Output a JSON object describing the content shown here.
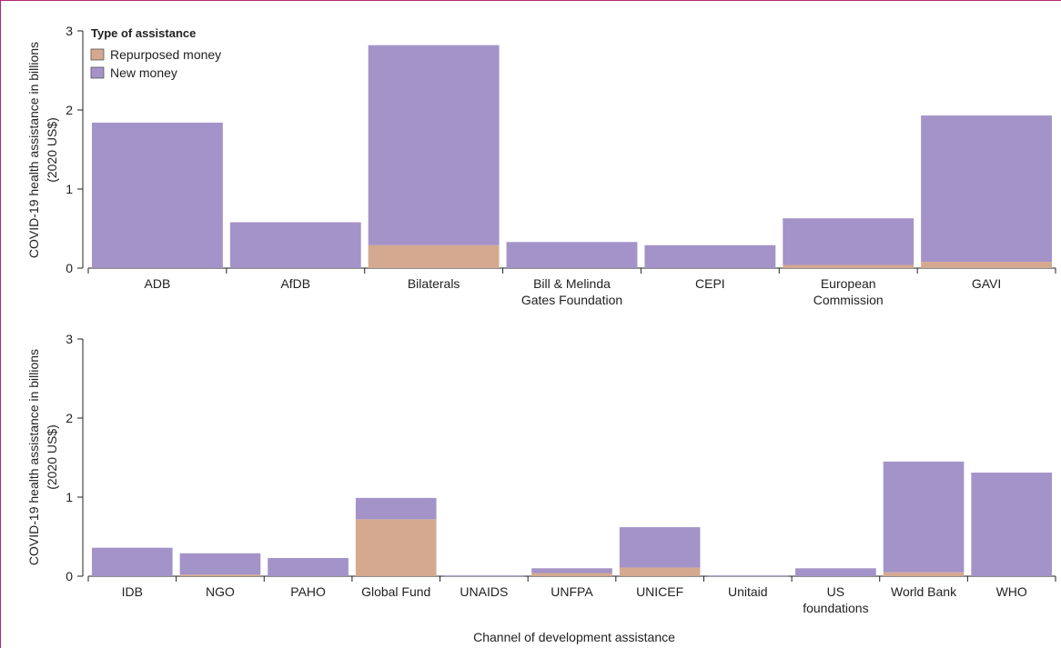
{
  "legend": {
    "title": "Type of assistance",
    "items": [
      {
        "label": "Repurposed money",
        "color": "#d4a990"
      },
      {
        "label": "New money",
        "color": "#a493c8"
      }
    ]
  },
  "xlabel": "Channel of development assistance",
  "chart_data": [
    {
      "type": "bar",
      "stacked": true,
      "ylabel": [
        "COVID-19 health assistance in billions",
        "(2020 US$)"
      ],
      "ylim": [
        0,
        3
      ],
      "yticks": [
        0,
        1,
        2,
        3
      ],
      "categories": [
        [
          "ADB"
        ],
        [
          "AfDB"
        ],
        [
          "Bilaterals"
        ],
        [
          "Bill & Melinda",
          "Gates Foundation"
        ],
        [
          "CEPI"
        ],
        [
          "European",
          "Commission"
        ],
        [
          "GAVI"
        ]
      ],
      "series": [
        {
          "name": "Repurposed money",
          "color": "#d4a990",
          "values": [
            0,
            0,
            0.29,
            0,
            0,
            0.04,
            0.08
          ]
        },
        {
          "name": "New money",
          "color": "#a493c8",
          "values": [
            1.84,
            0.58,
            2.53,
            0.33,
            0.29,
            0.59,
            1.85
          ]
        }
      ]
    },
    {
      "type": "bar",
      "stacked": true,
      "ylabel": [
        "COVID-19 health assistance in billions",
        "(2020 US$)"
      ],
      "ylim": [
        0,
        3
      ],
      "yticks": [
        0,
        1,
        2,
        3
      ],
      "categories": [
        [
          "IDB"
        ],
        [
          "NGO"
        ],
        [
          "PAHO"
        ],
        [
          "Global Fund"
        ],
        [
          "UNAIDS"
        ],
        [
          "UNFPA"
        ],
        [
          "UNICEF"
        ],
        [
          "Unitaid"
        ],
        [
          "US",
          "foundations"
        ],
        [
          "World Bank"
        ],
        [
          "WHO"
        ]
      ],
      "series": [
        {
          "name": "Repurposed money",
          "color": "#d4a990",
          "values": [
            0,
            0.02,
            0,
            0.72,
            0,
            0.04,
            0.11,
            0,
            0,
            0.05,
            0
          ]
        },
        {
          "name": "New money",
          "color": "#a493c8",
          "values": [
            0.36,
            0.27,
            0.23,
            0.27,
            0.01,
            0.06,
            0.51,
            0.01,
            0.1,
            1.4,
            1.31
          ]
        }
      ]
    }
  ]
}
